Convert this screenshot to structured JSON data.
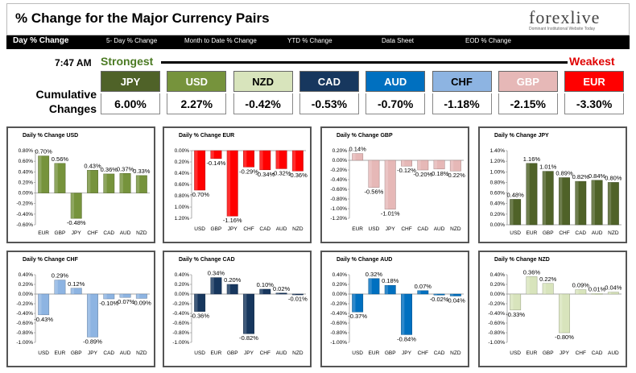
{
  "header": {
    "title": "% Change for the Major Currency Pairs",
    "logo_text": "forexlive",
    "logo_sub": "Dominant Institutional Website Today"
  },
  "nav": [
    "Day % Change",
    "5- Day % Change",
    "Month to Date % Change",
    "YTD % Change",
    "Data Sheet",
    "EOD % Change"
  ],
  "summary": {
    "time": "7:47 AM",
    "strongest_label": "Strongest",
    "weakest_label": "Weakest",
    "cumulative_label_1": "Cumulative",
    "cumulative_label_2": "Changes",
    "currencies": [
      {
        "code": "JPY",
        "value": "6.00%",
        "color": "#4f6228",
        "text": "#ffffff"
      },
      {
        "code": "USD",
        "value": "2.27%",
        "color": "#76933c",
        "text": "#ffffff"
      },
      {
        "code": "NZD",
        "value": "-0.42%",
        "color": "#d8e4bc",
        "text": "#000000"
      },
      {
        "code": "CAD",
        "value": "-0.53%",
        "color": "#17375e",
        "text": "#ffffff"
      },
      {
        "code": "AUD",
        "value": "-0.70%",
        "color": "#0070c0",
        "text": "#ffffff"
      },
      {
        "code": "CHF",
        "value": "-1.18%",
        "color": "#8db4e2",
        "text": "#000000"
      },
      {
        "code": "GBP",
        "value": "-2.15%",
        "color": "#e6b8b7",
        "text": "#ffffff"
      },
      {
        "code": "EUR",
        "value": "-3.30%",
        "color": "#ff0000",
        "text": "#ffffff"
      }
    ]
  },
  "chart_data": [
    {
      "type": "bar",
      "title": "Daily % Change USD",
      "categories": [
        "EUR",
        "GBP",
        "JPY",
        "CHF",
        "CAD",
        "AUD",
        "NZD"
      ],
      "values": [
        0.7,
        0.56,
        -0.48,
        0.43,
        0.36,
        0.37,
        0.33
      ],
      "labels": [
        "0.70%",
        "0.56%",
        "-0.48%",
        "0.43%",
        "0.36%",
        "0.37%",
        "0.33%"
      ],
      "yticks": [
        "0.80%",
        "0.60%",
        "0.40%",
        "0.20%",
        "0.00%",
        "-0.20%",
        "-0.40%",
        "-0.60%"
      ],
      "ylim": [
        -0.6,
        0.8
      ],
      "axis_bottom": false,
      "color": "#76933c"
    },
    {
      "type": "bar",
      "title": "Daily % Change EUR",
      "categories": [
        "USD",
        "GBP",
        "JPY",
        "CHF",
        "CAD",
        "AUD",
        "NZD"
      ],
      "values": [
        -0.7,
        -0.14,
        -1.16,
        -0.29,
        -0.34,
        -0.32,
        -0.36
      ],
      "labels": [
        "-0.70%",
        "-0.14%",
        "-1.16%",
        "-0.29%",
        "-0.34%",
        "-0.32%",
        "-0.36%"
      ],
      "yticks": [
        "0.00%",
        "0.20%",
        "0.40%",
        "0.60%",
        "0.80%",
        "1.00%",
        "1.20%"
      ],
      "ylim": [
        -1.2,
        0
      ],
      "axis_bottom": true,
      "color": "#ff0000"
    },
    {
      "type": "bar",
      "title": "Daily % Change GBP",
      "categories": [
        "EUR",
        "USD",
        "JPY",
        "CHF",
        "CAD",
        "AUD",
        "NZD"
      ],
      "values": [
        0.14,
        -0.56,
        -1.01,
        -0.12,
        -0.2,
        -0.18,
        -0.22
      ],
      "labels": [
        "0.14%",
        "-0.56%",
        "-1.01%",
        "-0.12%",
        "-0.20%",
        "-0.18%",
        "-0.22%"
      ],
      "yticks": [
        "0.20%",
        "0.00%",
        "-0.20%",
        "-0.40%",
        "-0.60%",
        "-0.80%",
        "-1.00%",
        "-1.20%"
      ],
      "ylim": [
        -1.2,
        0.2
      ],
      "axis_bottom": true,
      "color": "#e6b8b7"
    },
    {
      "type": "bar",
      "title": "Daily % Change JPY",
      "categories": [
        "USD",
        "EUR",
        "GBP",
        "CHF",
        "CAD",
        "AUD",
        "NZD"
      ],
      "values": [
        0.48,
        1.16,
        1.01,
        0.89,
        0.82,
        0.84,
        0.8
      ],
      "labels": [
        "0.48%",
        "1.16%",
        "1.01%",
        "0.89%",
        "0.82%",
        "0.84%",
        "0.80%"
      ],
      "yticks": [
        "1.40%",
        "1.20%",
        "1.00%",
        "0.80%",
        "0.60%",
        "0.40%",
        "0.20%",
        "0.00%"
      ],
      "ylim": [
        0,
        1.4
      ],
      "axis_bottom": false,
      "color": "#4f6228"
    },
    {
      "type": "bar",
      "title": "Daily % Change CHF",
      "categories": [
        "USD",
        "EUR",
        "GBP",
        "JPY",
        "CAD",
        "AUD",
        "NZD"
      ],
      "values": [
        -0.43,
        0.29,
        0.12,
        -0.89,
        -0.1,
        -0.07,
        -0.09
      ],
      "labels": [
        "-0.43%",
        "0.29%",
        "0.12%",
        "-0.89%",
        "-0.10%",
        "-0.07%",
        "-0.09%"
      ],
      "yticks": [
        "0.40%",
        "0.20%",
        "0.00%",
        "-0.20%",
        "-0.40%",
        "-0.60%",
        "-0.80%",
        "-1.00%"
      ],
      "ylim": [
        -1.0,
        0.4
      ],
      "axis_bottom": true,
      "color": "#8db4e2"
    },
    {
      "type": "bar",
      "title": "Daily % Change CAD",
      "categories": [
        "USD",
        "EUR",
        "GBP",
        "JPY",
        "CHF",
        "AUD",
        "NZD"
      ],
      "values": [
        -0.36,
        0.34,
        0.2,
        -0.82,
        0.1,
        0.02,
        -0.01
      ],
      "labels": [
        "-0.36%",
        "0.34%",
        "0.20%",
        "-0.82%",
        "0.10%",
        "0.02%",
        "-0.01%"
      ],
      "yticks": [
        "0.40%",
        "0.20%",
        "0.00%",
        "-0.20%",
        "-0.40%",
        "-0.60%",
        "-0.80%",
        "-1.00%"
      ],
      "ylim": [
        -1.0,
        0.4
      ],
      "axis_bottom": true,
      "color": "#17375e"
    },
    {
      "type": "bar",
      "title": "Daily % Change AUD",
      "categories": [
        "USD",
        "EUR",
        "GBP",
        "JPY",
        "CHF",
        "CAD",
        "NZD"
      ],
      "values": [
        -0.37,
        0.32,
        0.18,
        -0.84,
        0.07,
        -0.02,
        -0.04
      ],
      "labels": [
        "-0.37%",
        "0.32%",
        "0.18%",
        "-0.84%",
        "0.07%",
        "-0.02%",
        "-0.04%"
      ],
      "yticks": [
        "0.40%",
        "0.20%",
        "0.00%",
        "-0.20%",
        "-0.40%",
        "-0.60%",
        "-0.80%",
        "-1.00%"
      ],
      "ylim": [
        -1.0,
        0.4
      ],
      "axis_bottom": true,
      "color": "#0070c0"
    },
    {
      "type": "bar",
      "title": "Daily % Change NZD",
      "categories": [
        "USD",
        "EUR",
        "GBP",
        "JPY",
        "CHF",
        "CAD",
        "AUD"
      ],
      "values": [
        -0.33,
        0.36,
        0.22,
        -0.8,
        0.09,
        0.01,
        0.04
      ],
      "labels": [
        "-0.33%",
        "0.36%",
        "0.22%",
        "-0.80%",
        "0.09%",
        "0.01%",
        "0.04%"
      ],
      "yticks": [
        "0.40%",
        "0.20%",
        "0.00%",
        "-0.20%",
        "-0.40%",
        "-0.60%",
        "-0.80%",
        "-1.00%"
      ],
      "ylim": [
        -1.0,
        0.4
      ],
      "axis_bottom": true,
      "color": "#d8e4bc"
    }
  ]
}
